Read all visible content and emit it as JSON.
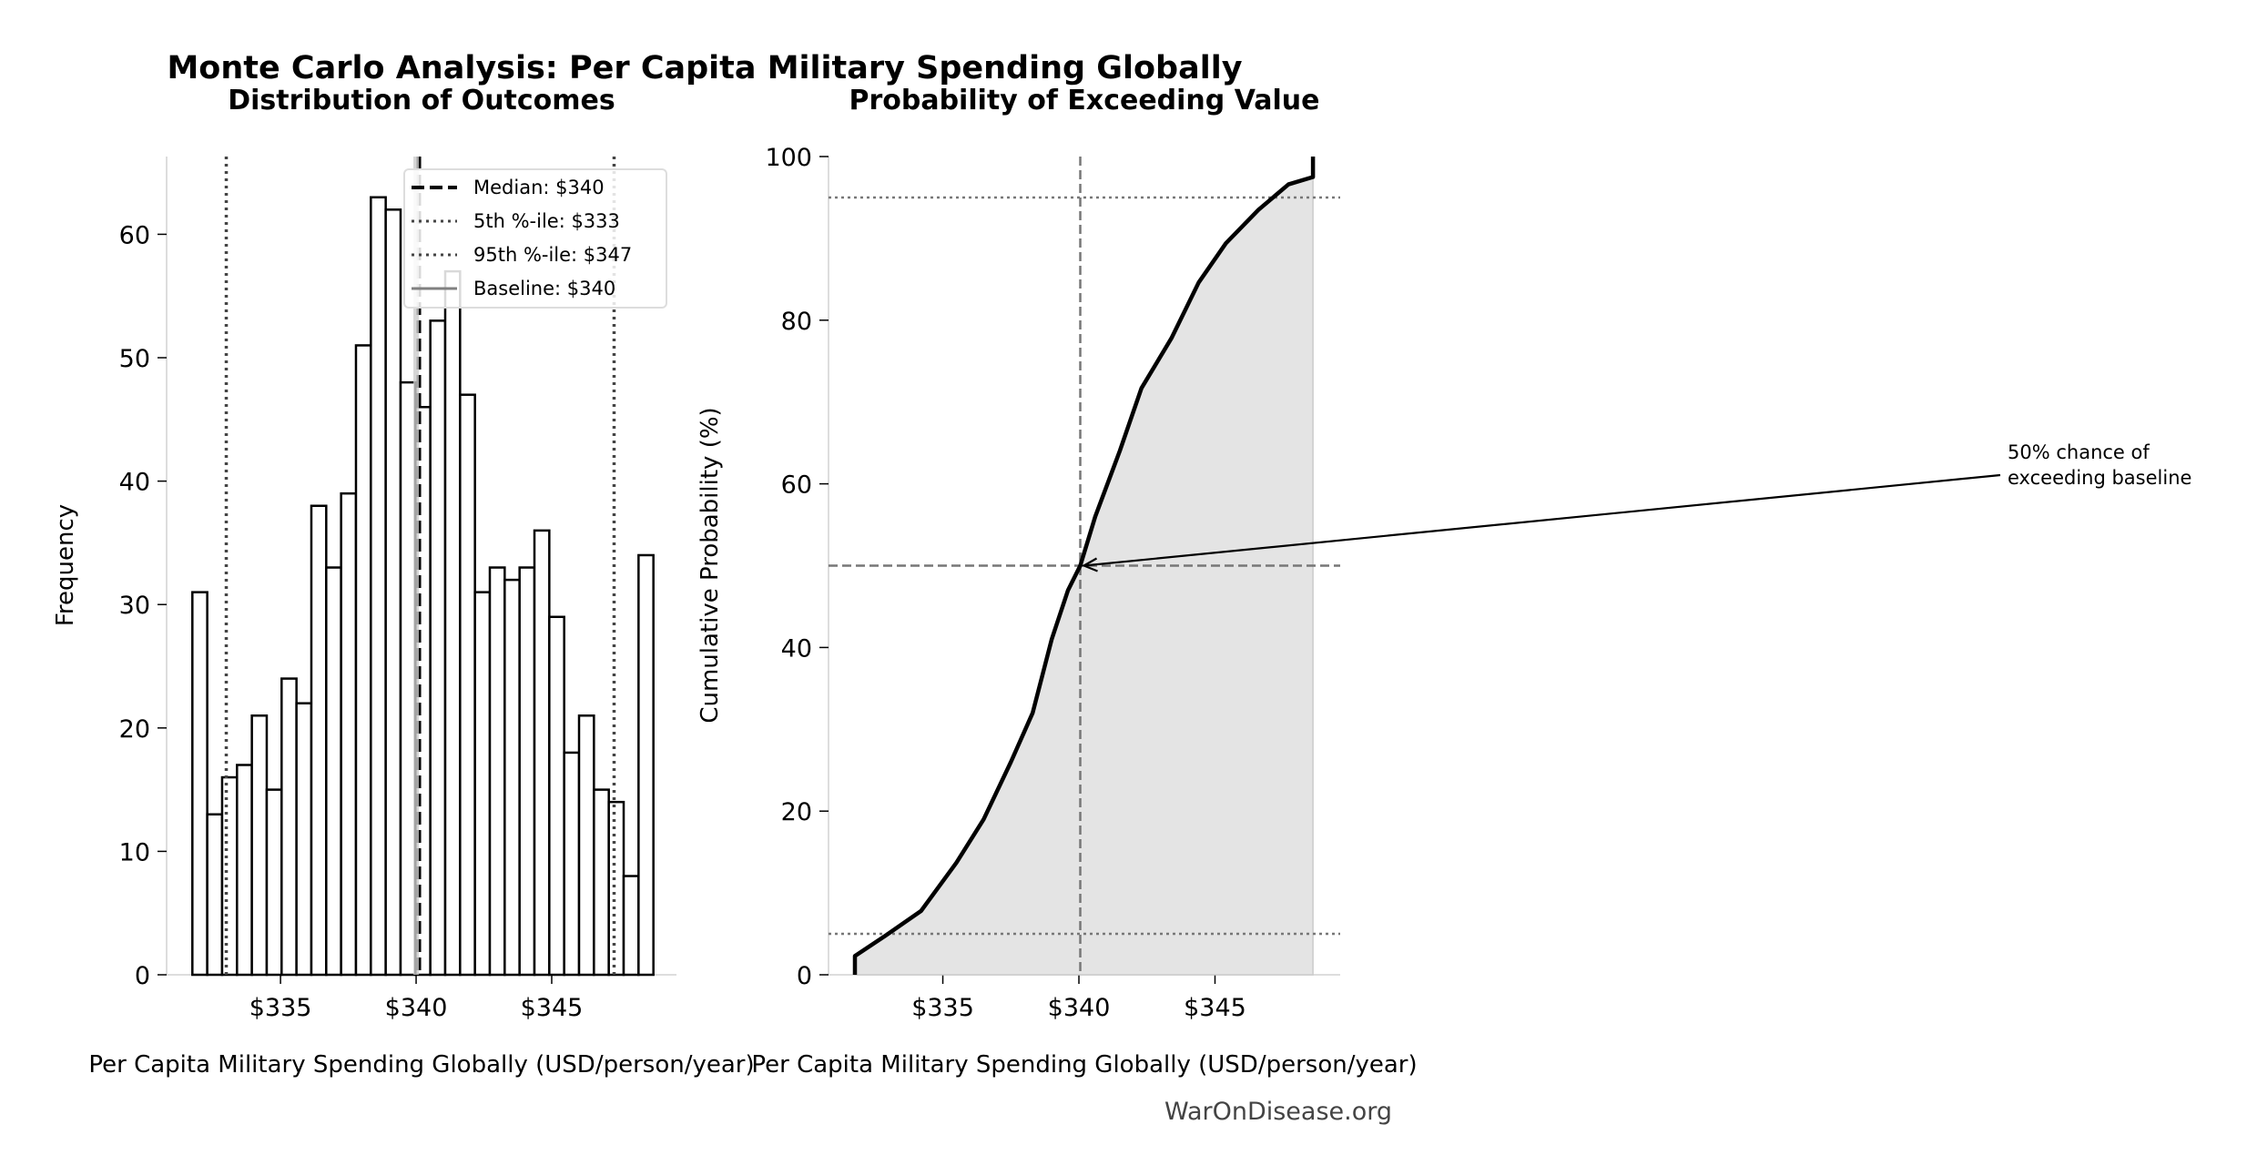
{
  "title": "Monte Carlo Analysis: Per Capita Military Spending Globally",
  "watermark": "WarOnDisease.org",
  "chart_data": [
    {
      "type": "bar",
      "subtitle": "Distribution of Outcomes",
      "xlabel": "Per Capita Military Spending Globally (USD/person/year)",
      "ylabel": "Frequency",
      "xlim": [
        330.8,
        349.6
      ],
      "ylim": [
        0,
        66.3
      ],
      "xticks": [
        {
          "v": 335,
          "label": "$335"
        },
        {
          "v": 340,
          "label": "$340"
        },
        {
          "v": 345,
          "label": "$345"
        }
      ],
      "yticks": [
        0,
        10,
        20,
        30,
        40,
        50,
        60
      ],
      "bin_start": 331.75,
      "bin_end": 348.75,
      "counts": [
        31,
        13,
        16,
        17,
        21,
        15,
        24,
        22,
        38,
        33,
        39,
        51,
        63,
        62,
        48,
        46,
        53,
        57,
        47,
        31,
        33,
        32,
        33,
        36,
        29,
        18,
        21,
        15,
        14,
        8,
        34
      ],
      "reference_lines": [
        {
          "name": "Median: $340",
          "x": 340.1,
          "style": "dashed",
          "color": "#000000"
        },
        {
          "name": "5th %-ile: $333",
          "x": 333.0,
          "style": "dotted",
          "color": "#444444"
        },
        {
          "name": "95th %-ile: $347",
          "x": 347.3,
          "style": "dotted",
          "color": "#444444"
        },
        {
          "name": "Baseline: $340",
          "x": 340.0,
          "style": "solid",
          "color": "#cccccc",
          "legend_color": "#808080"
        }
      ],
      "legend": "top-right",
      "grid": false
    },
    {
      "type": "line",
      "subtitle": "Probability of Exceeding Value",
      "xlabel": "Per Capita Military Spending Globally (USD/person/year)",
      "ylabel": "Cumulative Probability (%)",
      "xlim": [
        330.8,
        349.6
      ],
      "ylim": [
        0,
        100
      ],
      "xticks": [
        {
          "v": 335,
          "label": "$335"
        },
        {
          "v": 340,
          "label": "$340"
        },
        {
          "v": 345,
          "label": "$345"
        }
      ],
      "yticks": [
        0,
        20,
        40,
        60,
        80,
        100
      ],
      "fill_color": "#e4e4e4",
      "points": [
        [
          331.77,
          0
        ],
        [
          331.77,
          2.3
        ],
        [
          332.9,
          4.8
        ],
        [
          334.2,
          7.8
        ],
        [
          335.5,
          13.7
        ],
        [
          336.5,
          19
        ],
        [
          337.5,
          26
        ],
        [
          338.3,
          32
        ],
        [
          339.0,
          41
        ],
        [
          339.6,
          47
        ],
        [
          340.05,
          50
        ],
        [
          340.6,
          56
        ],
        [
          341.5,
          64
        ],
        [
          342.3,
          71.7
        ],
        [
          343.4,
          77.8
        ],
        [
          344.4,
          84.6
        ],
        [
          345.4,
          89.4
        ],
        [
          346.6,
          93.5
        ],
        [
          347.7,
          96.6
        ],
        [
          348.6,
          97.5
        ],
        [
          348.6,
          100
        ]
      ],
      "hlines": [
        {
          "y": 5,
          "style": "dotted"
        },
        {
          "y": 50,
          "style": "dashed"
        },
        {
          "y": 95,
          "style": "dotted"
        }
      ],
      "vline": {
        "x": 340.05,
        "style": "dashed"
      },
      "annotation": {
        "text_line1": "50% chance of",
        "text_line2": "exceeding baseline",
        "target": [
          340.05,
          50
        ]
      },
      "grid": false
    }
  ]
}
